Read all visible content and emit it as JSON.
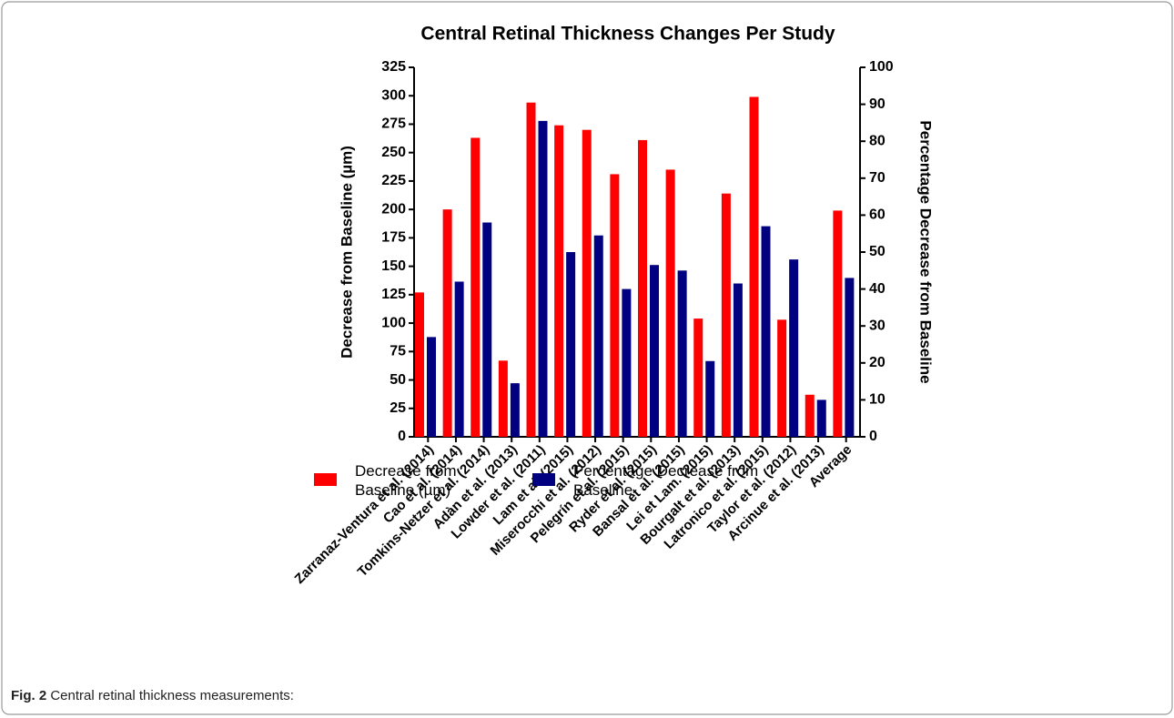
{
  "chart_data": {
    "type": "bar",
    "title": "Central Retinal Thickness Changes Per Study",
    "ylabel": "Decrease from Baseline (µm)",
    "y2label": "Percentage Decrease from Baseline",
    "categories": [
      "Zarranaz-Ventura et al. (2014)",
      "Cao et al. (2014)",
      "Tomkins-Netzer et al. (2014)",
      "Adàn et al. (2013)",
      "Lowder et al. (2011)",
      "Lam et al. (2015)",
      "Miserocchi et al. (2012)",
      "Pelegrín et al. (2015)",
      "Ryder et al. (2015)",
      "Bansal et al. (2015)",
      "Lei et Lam. (2015)",
      "Bourgalt et al. (2013)",
      "Latronico et al. (2015)",
      "Taylor et al. (2012)",
      "Arcinue et al. (2013)",
      "Average"
    ],
    "series": [
      {
        "name": "Decrease from Baseline (µm)",
        "color": "#ff0000",
        "values": [
          127,
          200,
          263,
          67,
          294,
          274,
          270,
          231,
          261,
          235,
          104,
          214,
          299,
          103,
          37,
          199
        ]
      },
      {
        "name": "Percentage Decrease from Baseline",
        "color": "#000080",
        "axis": "y2",
        "values": [
          27,
          42,
          58,
          14.5,
          85.5,
          50,
          54.5,
          40,
          46.5,
          45,
          20.5,
          41.5,
          57,
          48,
          10,
          43
        ]
      }
    ],
    "ylim": [
      0,
      325
    ],
    "yticks": [
      0,
      25,
      50,
      75,
      100,
      125,
      150,
      175,
      200,
      225,
      250,
      275,
      300,
      325
    ],
    "y2lim": [
      0,
      100
    ],
    "y2ticks": [
      0,
      10,
      20,
      30,
      40,
      50,
      60,
      70,
      80,
      90,
      100
    ],
    "legend": "bottom"
  },
  "caption": {
    "label": "Fig. 2",
    "text": "Central retinal thickness measurements:"
  }
}
